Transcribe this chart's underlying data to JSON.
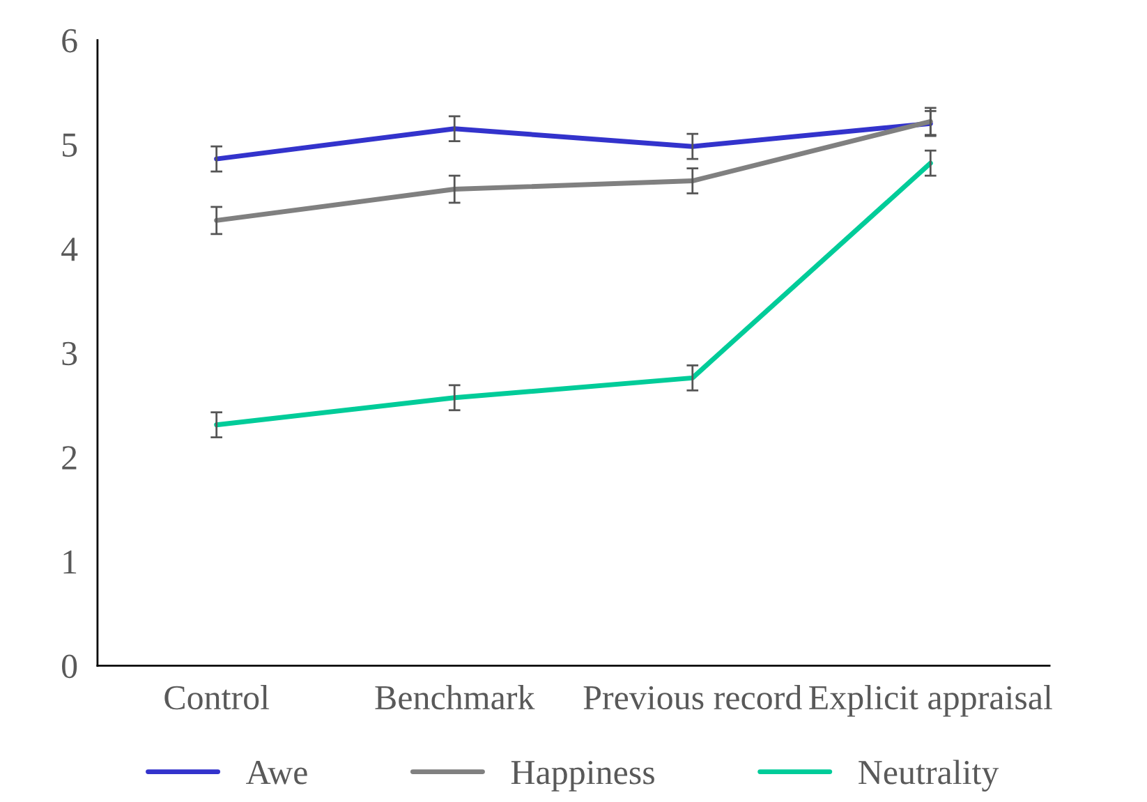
{
  "chart_data": {
    "type": "line",
    "categories": [
      "Control",
      "Benchmark",
      "Previous record",
      "Explicit appraisal"
    ],
    "series": [
      {
        "name": "Awe",
        "color": "#3333cc",
        "values": [
          4.86,
          5.15,
          4.98,
          5.2
        ],
        "errors": [
          0.12,
          0.12,
          0.12,
          0.12
        ]
      },
      {
        "name": "Happiness",
        "color": "#808080",
        "values": [
          4.27,
          4.57,
          4.65,
          5.22
        ],
        "errors": [
          0.13,
          0.13,
          0.12,
          0.13
        ]
      },
      {
        "name": "Neutrality",
        "color": "#00cc99",
        "values": [
          2.31,
          2.57,
          2.76,
          4.82
        ],
        "errors": [
          0.12,
          0.12,
          0.12,
          0.12
        ]
      }
    ],
    "ylim": [
      0,
      6
    ],
    "yticks": [
      0,
      1,
      2,
      3,
      4,
      5,
      6
    ],
    "grid": false,
    "legend": "bottom",
    "marker": "none",
    "line_style": "solid"
  }
}
